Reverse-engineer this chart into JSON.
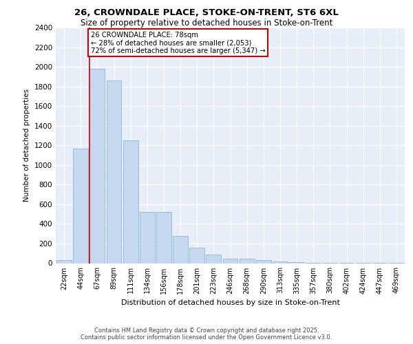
{
  "title_line1": "26, CROWNDALE PLACE, STOKE-ON-TRENT, ST6 6XL",
  "title_line2": "Size of property relative to detached houses in Stoke-on-Trent",
  "xlabel": "Distribution of detached houses by size in Stoke-on-Trent",
  "ylabel": "Number of detached properties",
  "categories": [
    "22sqm",
    "44sqm",
    "67sqm",
    "89sqm",
    "111sqm",
    "134sqm",
    "156sqm",
    "178sqm",
    "201sqm",
    "223sqm",
    "246sqm",
    "268sqm",
    "290sqm",
    "313sqm",
    "335sqm",
    "357sqm",
    "380sqm",
    "402sqm",
    "424sqm",
    "447sqm",
    "469sqm"
  ],
  "values": [
    30,
    1170,
    1980,
    1860,
    1250,
    520,
    520,
    275,
    160,
    85,
    45,
    45,
    35,
    15,
    8,
    3,
    3,
    3,
    1,
    1,
    1
  ],
  "bar_color": "#c5d8ef",
  "bar_edgecolor": "#7bafd4",
  "vline_bar_index": 2,
  "vline_color": "#cc0000",
  "annotation_text": "26 CROWNDALE PLACE: 78sqm\n← 28% of detached houses are smaller (2,053)\n72% of semi-detached houses are larger (5,347) →",
  "annotation_box_edgecolor": "#cc0000",
  "ylim": [
    0,
    2400
  ],
  "yticks": [
    0,
    200,
    400,
    600,
    800,
    1000,
    1200,
    1400,
    1600,
    1800,
    2000,
    2200,
    2400
  ],
  "background_color": "#e8eef8",
  "grid_color": "#ffffff",
  "footer_line1": "Contains HM Land Registry data © Crown copyright and database right 2025.",
  "footer_line2": "Contains public sector information licensed under the Open Government Licence v3.0."
}
